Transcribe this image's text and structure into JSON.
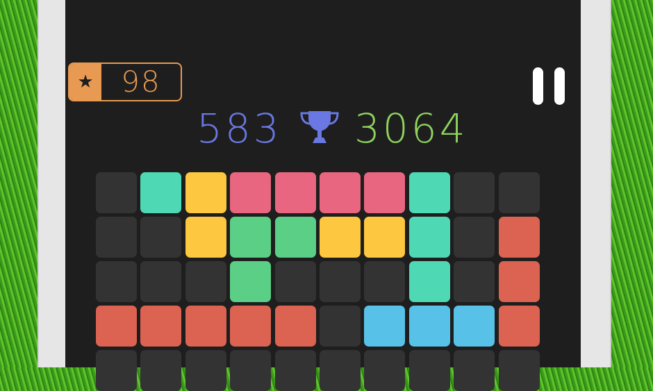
{
  "hud": {
    "stars": "98",
    "star_icon": "star-icon",
    "current_score": "583",
    "trophy_icon": "trophy-icon",
    "best_score": "3064",
    "pause_icon": "pause-icon"
  },
  "colors": {
    "empty": "#333333",
    "teal": "#4fd8b4",
    "yellow": "#fdc73f",
    "pink": "#e8667f",
    "green": "#5bcf85",
    "red": "#dc6251",
    "blue": "#58c1e8",
    "stars_accent": "#e99a52",
    "current_score": "#6a78e4",
    "best_score": "#8ed45e"
  },
  "board": [
    [
      "empty",
      "teal",
      "yellow",
      "pink",
      "pink",
      "pink",
      "pink",
      "teal",
      "empty",
      "empty"
    ],
    [
      "empty",
      "empty",
      "yellow",
      "green",
      "green",
      "yellow",
      "yellow",
      "teal",
      "empty",
      "red"
    ],
    [
      "empty",
      "empty",
      "empty",
      "green",
      "empty",
      "empty",
      "empty",
      "teal",
      "empty",
      "red"
    ],
    [
      "red",
      "red",
      "red",
      "red",
      "red",
      "empty",
      "blue",
      "blue",
      "blue",
      "red"
    ],
    [
      "empty",
      "empty",
      "empty",
      "empty",
      "empty",
      "empty",
      "empty",
      "empty",
      "empty",
      "empty"
    ]
  ]
}
